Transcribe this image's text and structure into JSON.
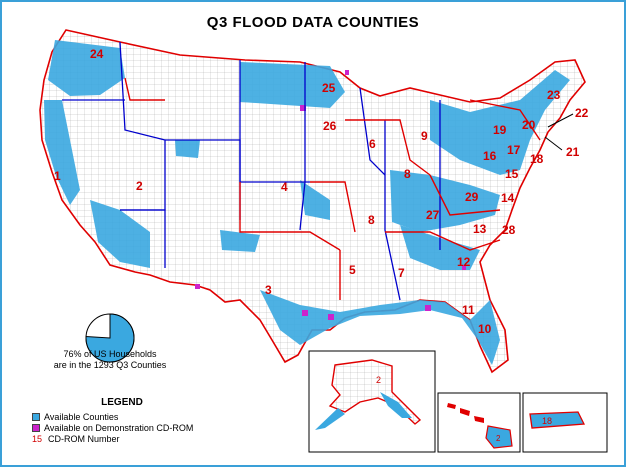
{
  "title": "Q3 FLOOD DATA COUNTIES",
  "pie": {
    "line1": "76% of US Households",
    "line2": "are in the 1293 Q3 Counties",
    "fraction": 0.76
  },
  "legend": {
    "title": "LEGEND",
    "available": "Available Counties",
    "demo": "Available on Demonstration CD-ROM",
    "cd_num_sample": "15",
    "cd_num_label": "CD-ROM Number"
  },
  "colors": {
    "available": "#3aa8e0",
    "demo": "#cc22cc",
    "cd_number": "#d10000",
    "border": "#e00000",
    "state_line": "#0000cc",
    "frame": "#3aa0d8"
  },
  "regions": [
    {
      "n": "24"
    },
    {
      "n": "1"
    },
    {
      "n": "2"
    },
    {
      "n": "4"
    },
    {
      "n": "3"
    },
    {
      "n": "25"
    },
    {
      "n": "26"
    },
    {
      "n": "6"
    },
    {
      "n": "8"
    },
    {
      "n": "8"
    },
    {
      "n": "9"
    },
    {
      "n": "5"
    },
    {
      "n": "7"
    },
    {
      "n": "27"
    },
    {
      "n": "12"
    },
    {
      "n": "13"
    },
    {
      "n": "11"
    },
    {
      "n": "10"
    },
    {
      "n": "28"
    },
    {
      "n": "29"
    },
    {
      "n": "14"
    },
    {
      "n": "15"
    },
    {
      "n": "16"
    },
    {
      "n": "17"
    },
    {
      "n": "18"
    },
    {
      "n": "19"
    },
    {
      "n": "20"
    },
    {
      "n": "23"
    },
    {
      "n": "22"
    },
    {
      "n": "21"
    }
  ],
  "insets": {
    "alaska": "2",
    "hawaii": "2",
    "puerto_rico": "18"
  }
}
